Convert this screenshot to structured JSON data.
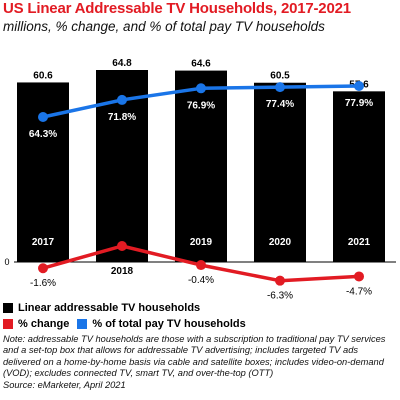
{
  "chart_data": {
    "type": "bar",
    "title": "US Linear Addressable TV Households, 2017-2021",
    "subtitle": "millions, % change, and % of total pay TV households",
    "categories": [
      "2017",
      "2018",
      "2019",
      "2020",
      "2021"
    ],
    "series": [
      {
        "name": "Linear addressable TV households",
        "kind": "bar",
        "color": "#000000",
        "values": [
          60.6,
          64.8,
          64.6,
          60.5,
          57.6
        ],
        "labels": [
          "60.6",
          "64.8",
          "64.6",
          "60.5",
          "57.6"
        ]
      },
      {
        "name": "% change",
        "kind": "line",
        "color": "#e21b23",
        "values": [
          -1.6,
          6.8,
          -0.4,
          -6.3,
          -4.7
        ],
        "labels": [
          "-1.6%",
          "6.8%",
          "-0.4%",
          "-6.3%",
          "-4.7%"
        ]
      },
      {
        "name": "% of total pay TV households",
        "kind": "line",
        "color": "#1a75e8",
        "values": [
          64.3,
          71.8,
          76.9,
          77.4,
          77.9
        ],
        "labels": [
          "64.3%",
          "71.8%",
          "76.9%",
          "77.4%",
          "77.9%"
        ]
      }
    ],
    "zero_label": "0",
    "legend_position": "bottom"
  },
  "legend": {
    "bars": "Linear addressable TV households",
    "change": "% change",
    "share": "% of total pay TV households"
  },
  "note": "Note: addressable TV households are those with a subscription to traditional pay TV services and a set-top box that allows for addressable TV advertising; includes targeted TV ads delivered on a home-by-home basis via cable and satellite boxes; includes video-on-demand (VOD); excludes connected TV, smart TV, and over-the-top (OTT)",
  "source": "Source: eMarketer, April 2021"
}
